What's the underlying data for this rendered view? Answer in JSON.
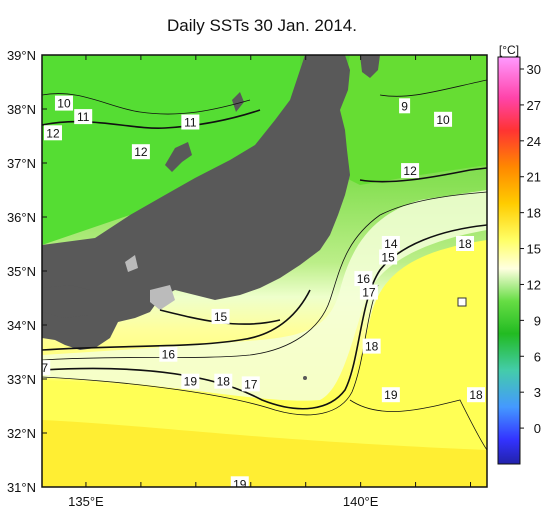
{
  "title": "Daily SSTs 30 Jan. 2014.",
  "colorbar": {
    "unit": "[°C]",
    "ticks": [
      "30",
      "27",
      "24",
      "21",
      "18",
      "15",
      "12",
      "9",
      "6",
      "3",
      "0"
    ],
    "stops": [
      "#ff99ff",
      "#ff3333",
      "#ff8800",
      "#ffcc00",
      "#ffff66",
      "#ffffe0",
      "#66dd44",
      "#22bb22",
      "#44ccaa",
      "#4499ff",
      "#3333ff",
      "#2222aa"
    ]
  },
  "axes": {
    "lat_labels": [
      "39°N",
      "38°N",
      "37°N",
      "36°N",
      "35°N",
      "34°N",
      "33°N",
      "32°N",
      "31°N"
    ],
    "lon_labels": [
      "135°E",
      "140°E"
    ],
    "lat_range": [
      31,
      39
    ],
    "lon_range": [
      134.2,
      142.3
    ]
  },
  "colors": {
    "land": "#595959",
    "cold_sea": "#66dd33",
    "mid_sea": "#99ee66",
    "warm_sea": "#ffff66",
    "hot_sea": "#ffee33",
    "pale_sea": "#eeffcc"
  },
  "isotherm_labels": [
    {
      "text": "10",
      "lon": 134.6,
      "lat": 38.1
    },
    {
      "text": "11",
      "lon": 134.95,
      "lat": 37.85
    },
    {
      "text": "12",
      "lon": 134.4,
      "lat": 37.55
    },
    {
      "text": "11",
      "lon": 136.9,
      "lat": 37.75
    },
    {
      "text": "12",
      "lon": 136.0,
      "lat": 37.2
    },
    {
      "text": "9",
      "lon": 140.8,
      "lat": 38.05
    },
    {
      "text": "10",
      "lon": 141.5,
      "lat": 37.8
    },
    {
      "text": "12",
      "lon": 140.9,
      "lat": 36.85
    },
    {
      "text": "14",
      "lon": 140.55,
      "lat": 35.5
    },
    {
      "text": "15",
      "lon": 140.5,
      "lat": 35.25
    },
    {
      "text": "18",
      "lon": 141.9,
      "lat": 35.5
    },
    {
      "text": "16",
      "lon": 140.05,
      "lat": 34.85
    },
    {
      "text": "17",
      "lon": 140.15,
      "lat": 34.6
    },
    {
      "text": "15",
      "lon": 137.45,
      "lat": 34.15
    },
    {
      "text": "16",
      "lon": 136.5,
      "lat": 33.45
    },
    {
      "text": "18",
      "lon": 140.2,
      "lat": 33.6
    },
    {
      "text": "19",
      "lon": 136.9,
      "lat": 32.95
    },
    {
      "text": "18",
      "lon": 137.5,
      "lat": 32.95
    },
    {
      "text": "17",
      "lon": 138.0,
      "lat": 32.9
    },
    {
      "text": "19",
      "lon": 140.55,
      "lat": 32.7
    },
    {
      "text": "18",
      "lon": 142.1,
      "lat": 32.7
    },
    {
      "text": "19",
      "lon": 137.8,
      "lat": 31.05
    },
    {
      "text": "7",
      "lon": 134.25,
      "lat": 33.2
    }
  ]
}
